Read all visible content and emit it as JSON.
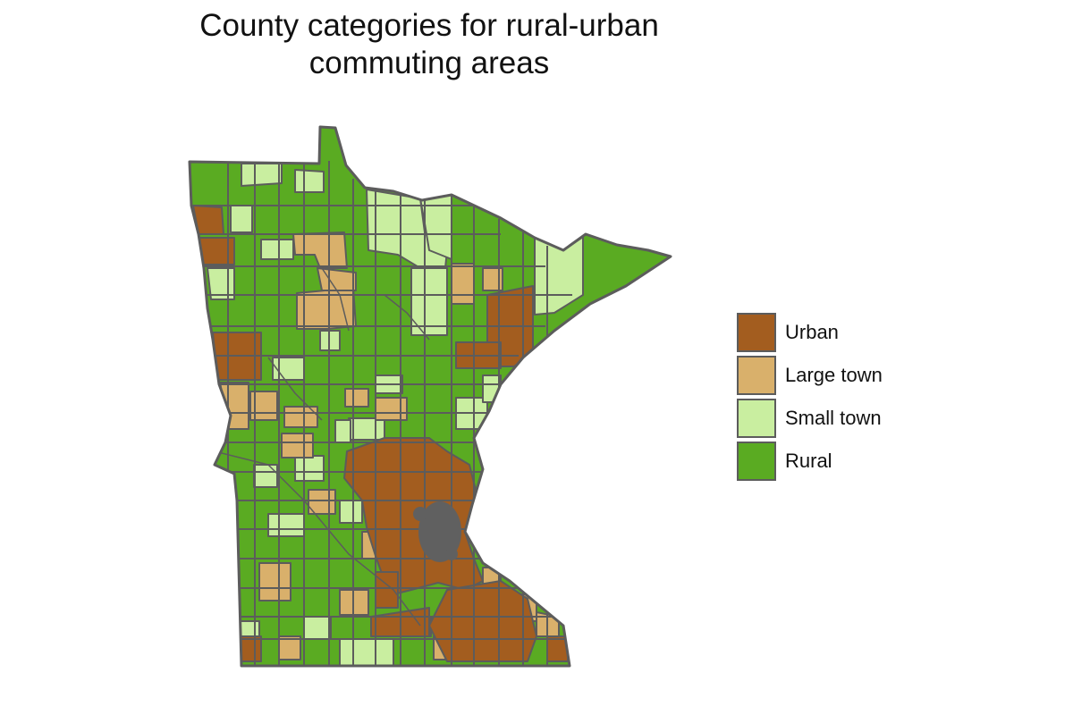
{
  "title_line1": "County categories for rural-urban",
  "title_line2": "commuting areas",
  "colors": {
    "urban": "#a35d1f",
    "large_town": "#d9b06b",
    "small_town": "#c9eea0",
    "rural": "#5aab22",
    "border": "#5c5c5c"
  },
  "legend": [
    {
      "label": "Urban",
      "color": "#a35d1f"
    },
    {
      "label": "Large town",
      "color": "#d9b06b"
    },
    {
      "label": "Small town",
      "color": "#c9eea0"
    },
    {
      "label": "Rural",
      "color": "#5aab22"
    }
  ]
}
